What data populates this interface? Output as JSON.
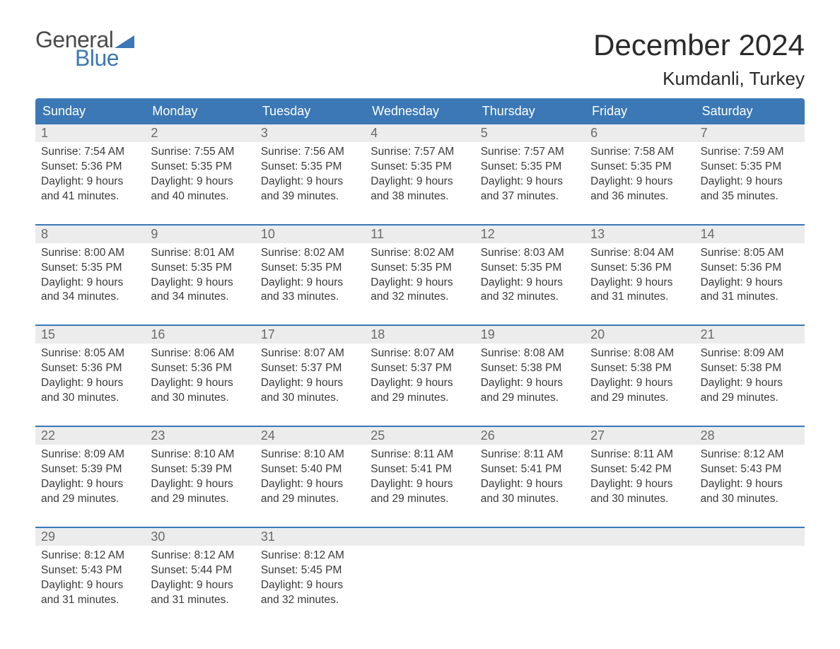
{
  "logo": {
    "textTop": "General",
    "textBottom": "Blue"
  },
  "title": "December 2024",
  "location": "Kumdanli, Turkey",
  "colors": {
    "brandBlue": "#3b78b5",
    "headerBg": "#3b78b5",
    "dayNumBg": "#ececec",
    "bodyText": "#3a3a3a",
    "dayNumText": "#6a6a6a",
    "weekSep": "#3b78b5"
  },
  "weekdays": [
    "Sunday",
    "Monday",
    "Tuesday",
    "Wednesday",
    "Thursday",
    "Friday",
    "Saturday"
  ],
  "weeks": [
    [
      {
        "n": "1",
        "sunrise": "Sunrise: 7:54 AM",
        "sunset": "Sunset: 5:36 PM",
        "d1": "Daylight: 9 hours",
        "d2": "and 41 minutes."
      },
      {
        "n": "2",
        "sunrise": "Sunrise: 7:55 AM",
        "sunset": "Sunset: 5:35 PM",
        "d1": "Daylight: 9 hours",
        "d2": "and 40 minutes."
      },
      {
        "n": "3",
        "sunrise": "Sunrise: 7:56 AM",
        "sunset": "Sunset: 5:35 PM",
        "d1": "Daylight: 9 hours",
        "d2": "and 39 minutes."
      },
      {
        "n": "4",
        "sunrise": "Sunrise: 7:57 AM",
        "sunset": "Sunset: 5:35 PM",
        "d1": "Daylight: 9 hours",
        "d2": "and 38 minutes."
      },
      {
        "n": "5",
        "sunrise": "Sunrise: 7:57 AM",
        "sunset": "Sunset: 5:35 PM",
        "d1": "Daylight: 9 hours",
        "d2": "and 37 minutes."
      },
      {
        "n": "6",
        "sunrise": "Sunrise: 7:58 AM",
        "sunset": "Sunset: 5:35 PM",
        "d1": "Daylight: 9 hours",
        "d2": "and 36 minutes."
      },
      {
        "n": "7",
        "sunrise": "Sunrise: 7:59 AM",
        "sunset": "Sunset: 5:35 PM",
        "d1": "Daylight: 9 hours",
        "d2": "and 35 minutes."
      }
    ],
    [
      {
        "n": "8",
        "sunrise": "Sunrise: 8:00 AM",
        "sunset": "Sunset: 5:35 PM",
        "d1": "Daylight: 9 hours",
        "d2": "and 34 minutes."
      },
      {
        "n": "9",
        "sunrise": "Sunrise: 8:01 AM",
        "sunset": "Sunset: 5:35 PM",
        "d1": "Daylight: 9 hours",
        "d2": "and 34 minutes."
      },
      {
        "n": "10",
        "sunrise": "Sunrise: 8:02 AM",
        "sunset": "Sunset: 5:35 PM",
        "d1": "Daylight: 9 hours",
        "d2": "and 33 minutes."
      },
      {
        "n": "11",
        "sunrise": "Sunrise: 8:02 AM",
        "sunset": "Sunset: 5:35 PM",
        "d1": "Daylight: 9 hours",
        "d2": "and 32 minutes."
      },
      {
        "n": "12",
        "sunrise": "Sunrise: 8:03 AM",
        "sunset": "Sunset: 5:35 PM",
        "d1": "Daylight: 9 hours",
        "d2": "and 32 minutes."
      },
      {
        "n": "13",
        "sunrise": "Sunrise: 8:04 AM",
        "sunset": "Sunset: 5:36 PM",
        "d1": "Daylight: 9 hours",
        "d2": "and 31 minutes."
      },
      {
        "n": "14",
        "sunrise": "Sunrise: 8:05 AM",
        "sunset": "Sunset: 5:36 PM",
        "d1": "Daylight: 9 hours",
        "d2": "and 31 minutes."
      }
    ],
    [
      {
        "n": "15",
        "sunrise": "Sunrise: 8:05 AM",
        "sunset": "Sunset: 5:36 PM",
        "d1": "Daylight: 9 hours",
        "d2": "and 30 minutes."
      },
      {
        "n": "16",
        "sunrise": "Sunrise: 8:06 AM",
        "sunset": "Sunset: 5:36 PM",
        "d1": "Daylight: 9 hours",
        "d2": "and 30 minutes."
      },
      {
        "n": "17",
        "sunrise": "Sunrise: 8:07 AM",
        "sunset": "Sunset: 5:37 PM",
        "d1": "Daylight: 9 hours",
        "d2": "and 30 minutes."
      },
      {
        "n": "18",
        "sunrise": "Sunrise: 8:07 AM",
        "sunset": "Sunset: 5:37 PM",
        "d1": "Daylight: 9 hours",
        "d2": "and 29 minutes."
      },
      {
        "n": "19",
        "sunrise": "Sunrise: 8:08 AM",
        "sunset": "Sunset: 5:38 PM",
        "d1": "Daylight: 9 hours",
        "d2": "and 29 minutes."
      },
      {
        "n": "20",
        "sunrise": "Sunrise: 8:08 AM",
        "sunset": "Sunset: 5:38 PM",
        "d1": "Daylight: 9 hours",
        "d2": "and 29 minutes."
      },
      {
        "n": "21",
        "sunrise": "Sunrise: 8:09 AM",
        "sunset": "Sunset: 5:38 PM",
        "d1": "Daylight: 9 hours",
        "d2": "and 29 minutes."
      }
    ],
    [
      {
        "n": "22",
        "sunrise": "Sunrise: 8:09 AM",
        "sunset": "Sunset: 5:39 PM",
        "d1": "Daylight: 9 hours",
        "d2": "and 29 minutes."
      },
      {
        "n": "23",
        "sunrise": "Sunrise: 8:10 AM",
        "sunset": "Sunset: 5:39 PM",
        "d1": "Daylight: 9 hours",
        "d2": "and 29 minutes."
      },
      {
        "n": "24",
        "sunrise": "Sunrise: 8:10 AM",
        "sunset": "Sunset: 5:40 PM",
        "d1": "Daylight: 9 hours",
        "d2": "and 29 minutes."
      },
      {
        "n": "25",
        "sunrise": "Sunrise: 8:11 AM",
        "sunset": "Sunset: 5:41 PM",
        "d1": "Daylight: 9 hours",
        "d2": "and 29 minutes."
      },
      {
        "n": "26",
        "sunrise": "Sunrise: 8:11 AM",
        "sunset": "Sunset: 5:41 PM",
        "d1": "Daylight: 9 hours",
        "d2": "and 30 minutes."
      },
      {
        "n": "27",
        "sunrise": "Sunrise: 8:11 AM",
        "sunset": "Sunset: 5:42 PM",
        "d1": "Daylight: 9 hours",
        "d2": "and 30 minutes."
      },
      {
        "n": "28",
        "sunrise": "Sunrise: 8:12 AM",
        "sunset": "Sunset: 5:43 PM",
        "d1": "Daylight: 9 hours",
        "d2": "and 30 minutes."
      }
    ],
    [
      {
        "n": "29",
        "sunrise": "Sunrise: 8:12 AM",
        "sunset": "Sunset: 5:43 PM",
        "d1": "Daylight: 9 hours",
        "d2": "and 31 minutes."
      },
      {
        "n": "30",
        "sunrise": "Sunrise: 8:12 AM",
        "sunset": "Sunset: 5:44 PM",
        "d1": "Daylight: 9 hours",
        "d2": "and 31 minutes."
      },
      {
        "n": "31",
        "sunrise": "Sunrise: 8:12 AM",
        "sunset": "Sunset: 5:45 PM",
        "d1": "Daylight: 9 hours",
        "d2": "and 32 minutes."
      },
      {
        "n": "",
        "sunrise": "",
        "sunset": "",
        "d1": "",
        "d2": ""
      },
      {
        "n": "",
        "sunrise": "",
        "sunset": "",
        "d1": "",
        "d2": ""
      },
      {
        "n": "",
        "sunrise": "",
        "sunset": "",
        "d1": "",
        "d2": ""
      },
      {
        "n": "",
        "sunrise": "",
        "sunset": "",
        "d1": "",
        "d2": ""
      }
    ]
  ]
}
